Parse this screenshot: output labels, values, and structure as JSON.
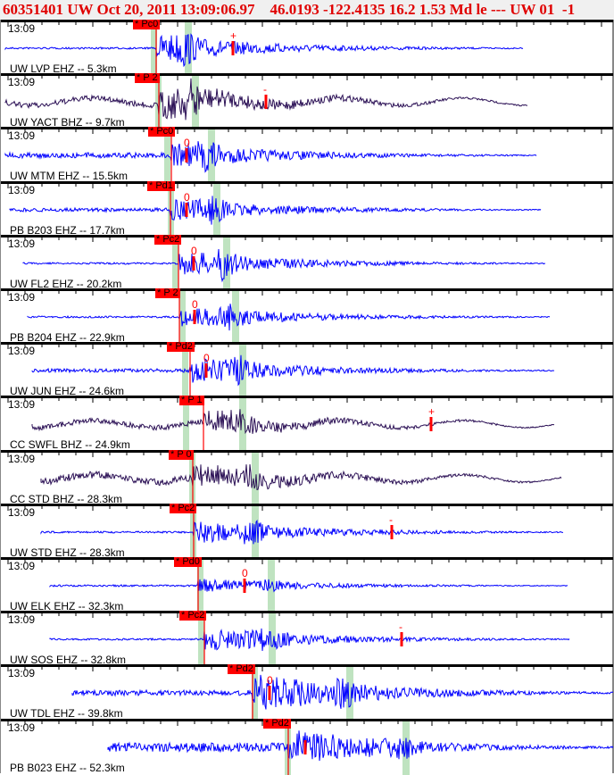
{
  "header": {
    "title": "60351401 UW Oct 20, 2011 13:09:06.97    46.0193 -122.4135 16.2 1.53 Md le --- UW 01  -1"
  },
  "colors": {
    "header_text": "#e00000",
    "short_period": "#0000ff",
    "broadband": "#2b1055",
    "pick": "#ff0000",
    "window": "#bfe3c0"
  },
  "traces": [
    {
      "time": "13:09",
      "station": "UW LVP EHZ -- 5.3km",
      "pick": "* Pc0",
      "marker": "+",
      "type": "short_period"
    },
    {
      "time": "13:09",
      "station": "UW YACT BHZ -- 9.7km",
      "pick": "* P 2",
      "marker": "-",
      "type": "broadband"
    },
    {
      "time": "13:09",
      "station": "UW MTM EHZ -- 15.5km",
      "pick": "* Pc0",
      "marker": "0",
      "type": "short_period"
    },
    {
      "time": "13:09",
      "station": "PB B203 EHZ -- 17.7km",
      "pick": "* Pd1",
      "marker": "0",
      "type": "short_period"
    },
    {
      "time": "13:09",
      "station": "UW FL2 EHZ -- 20.2km",
      "pick": "* Pc2",
      "marker": "0",
      "type": "short_period"
    },
    {
      "time": "13:09",
      "station": "PB B204 EHZ -- 22.9km",
      "pick": "* P 2",
      "marker": "0",
      "type": "short_period"
    },
    {
      "time": "13:09",
      "station": "UW JUN EHZ -- 24.6km",
      "pick": "* Pd2",
      "marker": "0",
      "type": "short_period"
    },
    {
      "time": "13:09",
      "station": "CC SWFL BHZ -- 24.9km",
      "pick": "* P 1",
      "marker": "+",
      "type": "broadband"
    },
    {
      "time": "13:09",
      "station": "CC STD BHZ -- 28.3km",
      "pick": "* P 0",
      "marker": "",
      "type": "broadband"
    },
    {
      "time": "13:09",
      "station": "UW STD EHZ -- 28.3km",
      "pick": "* Pc2",
      "marker": "-",
      "type": "short_period"
    },
    {
      "time": "13:09",
      "station": "UW ELK EHZ -- 32.3km",
      "pick": "* Pd0",
      "marker": "0",
      "type": "short_period"
    },
    {
      "time": "13:09",
      "station": "UW SOS EHZ -- 32.8km",
      "pick": "* Pc2",
      "marker": "-",
      "type": "short_period"
    },
    {
      "time": "13:09",
      "station": "UW TDL EHZ -- 39.8km",
      "pick": "* Pd2",
      "marker": "0",
      "type": "short_period"
    },
    {
      "time": "13:09",
      "station": "PB B023 EHZ -- 52.3km",
      "pick": "* Pd2",
      "marker": "",
      "type": "short_period"
    }
  ]
}
